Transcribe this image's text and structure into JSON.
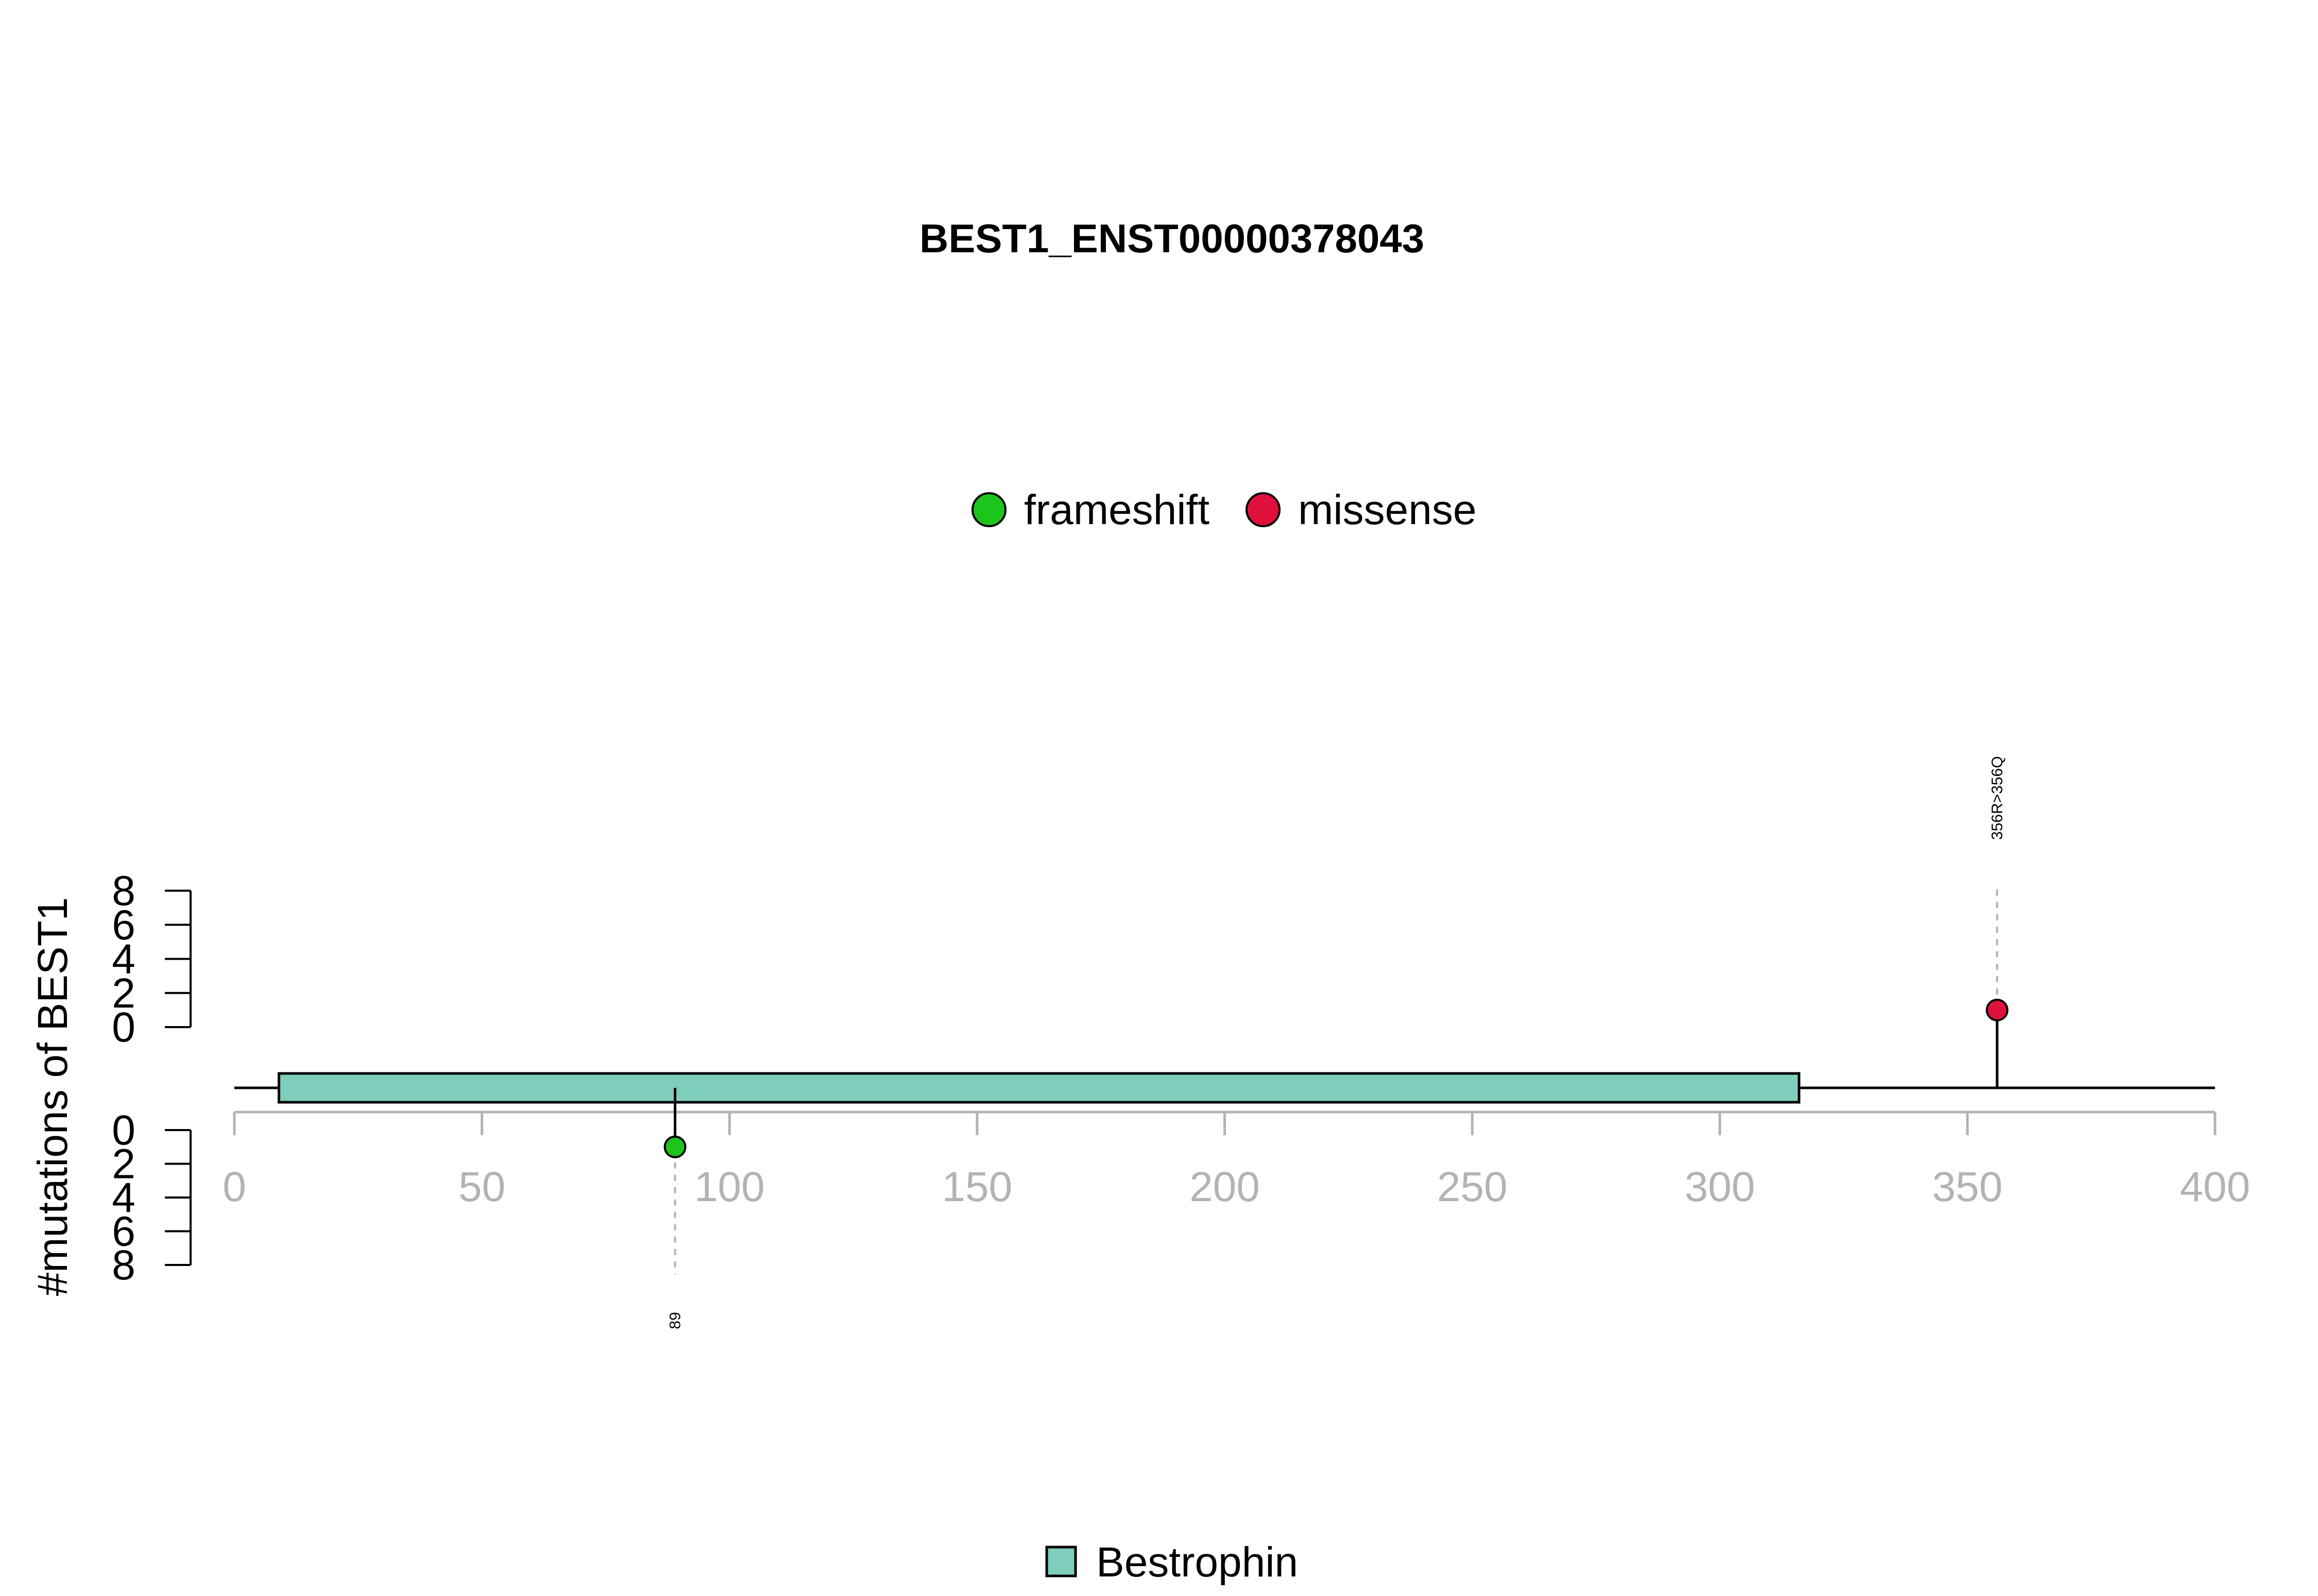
{
  "chart_data": {
    "type": "lollipop",
    "title": "BEST1_ENST00000378043",
    "ylabel": "#mutations of BEST1",
    "xlim": [
      0,
      400
    ],
    "x_ticks": [
      0,
      50,
      100,
      150,
      200,
      250,
      300,
      350,
      400
    ],
    "y_ticks_upper": [
      0,
      2,
      4,
      6,
      8
    ],
    "y_ticks_lower": [
      0,
      2,
      4,
      6,
      8
    ],
    "ylim": [
      0,
      8
    ],
    "protein_length": 400,
    "mutation_legend": [
      {
        "name": "frameshift",
        "color": "#1cc41c"
      },
      {
        "name": "missense",
        "color": "#e0103c"
      }
    ],
    "domains": [
      {
        "name": "Bestrophin",
        "start": 9,
        "end": 316,
        "color": "#7fcdbb"
      }
    ],
    "domain_legend": [
      {
        "name": "Bestrophin",
        "color": "#7fcdbb"
      }
    ],
    "mutations": [
      {
        "position": 89,
        "count": 1,
        "type": "frameshift",
        "side": "lower",
        "label": "89",
        "color": "#1cc41c"
      },
      {
        "position": 356,
        "count": 1,
        "type": "missense",
        "side": "upper",
        "label": "356R>356Q",
        "color": "#e0103c"
      }
    ]
  }
}
